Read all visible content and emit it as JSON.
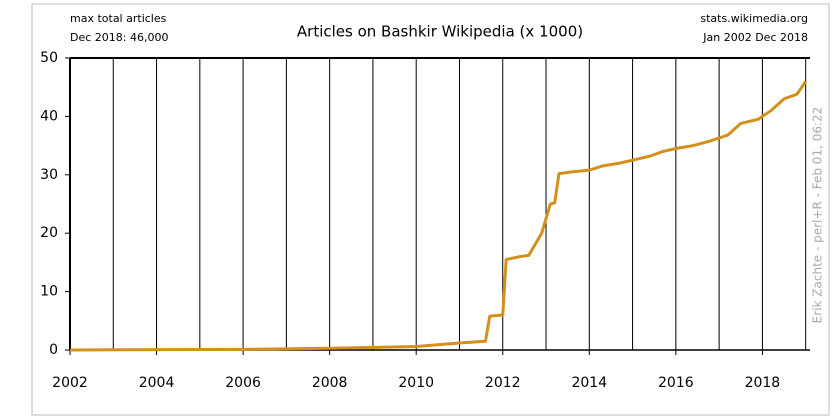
{
  "chart_data": {
    "type": "line",
    "title": "Articles on Bashkir Wikipedia (x 1000)",
    "note_left": [
      "max total articles",
      "Dec 2018: 46,000"
    ],
    "note_right": [
      "stats.wikimedia.org",
      "Jan 2002 Dec 2018"
    ],
    "credit": "Erik Zachte  -  perl+R  -  Feb 01, 06:22",
    "x": [
      2002,
      2006,
      2008,
      2010,
      2011,
      2011.6,
      2011.7,
      2012,
      2012.08,
      2012.4,
      2012.6,
      2012.9,
      2013.1,
      2013.2,
      2013.3,
      2013.6,
      2014,
      2014.3,
      2014.7,
      2015,
      2015.4,
      2015.7,
      2016,
      2016.4,
      2016.8,
      2017.2,
      2017.5,
      2017.9,
      2018.2,
      2018.5,
      2018.8,
      2019
    ],
    "series": [
      {
        "name": "articles",
        "color": "#d4901c",
        "values": [
          0,
          0.1,
          0.3,
          0.6,
          1.2,
          1.5,
          5.8,
          6,
          15.5,
          16,
          16.2,
          20,
          25,
          25.2,
          30.2,
          30.5,
          30.8,
          31.5,
          32,
          32.5,
          33.2,
          34,
          34.5,
          35,
          35.8,
          36.8,
          38.8,
          39.5,
          41,
          43,
          43.8,
          46
        ]
      }
    ],
    "xlim": [
      2002,
      2019.1
    ],
    "xticks": [
      2002,
      2004,
      2006,
      2008,
      2010,
      2012,
      2014,
      2016,
      2018
    ],
    "xgrid": [
      2003,
      2004,
      2005,
      2006,
      2007,
      2008,
      2009,
      2010,
      2011,
      2012,
      2013,
      2014,
      2015,
      2016,
      2017,
      2018,
      2019
    ],
    "ylim": [
      0,
      50
    ],
    "yticks": [
      0,
      10,
      20,
      30,
      40,
      50
    ]
  }
}
